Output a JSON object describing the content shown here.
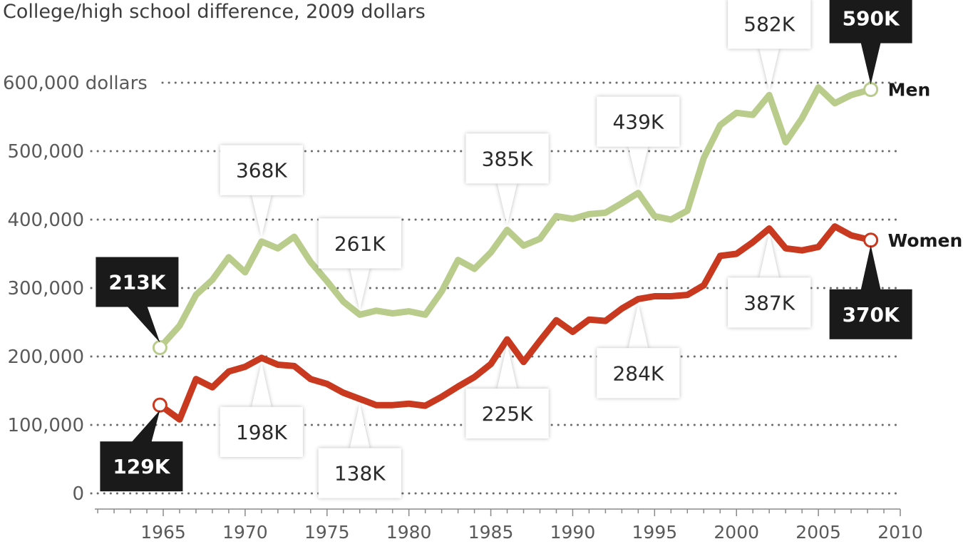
{
  "chart_data": {
    "type": "line",
    "title": "College/high school difference, 2009 dollars",
    "y_unit_label": "dollars",
    "ylim": [
      0,
      600000
    ],
    "xlim": [
      1961,
      2010
    ],
    "y_ticks": [
      {
        "value": 0,
        "label": "0"
      },
      {
        "value": 100000,
        "label": "100,000"
      },
      {
        "value": 200000,
        "label": "200,000"
      },
      {
        "value": 300000,
        "label": "300,000"
      },
      {
        "value": 400000,
        "label": "400,000"
      },
      {
        "value": 500000,
        "label": "500,000"
      },
      {
        "value": 600000,
        "label": "600,000"
      }
    ],
    "x_ticks": [
      {
        "value": 1965,
        "label": "1965"
      },
      {
        "value": 1970,
        "label": "1970"
      },
      {
        "value": 1975,
        "label": "1975"
      },
      {
        "value": 1980,
        "label": "1980"
      },
      {
        "value": 1985,
        "label": "1985"
      },
      {
        "value": 1990,
        "label": "1990"
      },
      {
        "value": 1995,
        "label": "1995"
      },
      {
        "value": 2000,
        "label": "2000"
      },
      {
        "value": 2005,
        "label": "2005"
      },
      {
        "value": 2010,
        "label": "2010"
      }
    ],
    "grid": true,
    "series": [
      {
        "name": "Men",
        "color": "#b9cc8c",
        "x": [
          1964.8,
          1966,
          1967,
          1968,
          1969,
          1970,
          1971,
          1972,
          1973,
          1974,
          1975,
          1976,
          1977,
          1978,
          1979,
          1980,
          1981,
          1982,
          1983,
          1984,
          1985,
          1986,
          1987,
          1988,
          1989,
          1990,
          1991,
          1992,
          1993,
          1994,
          1995,
          1996,
          1997,
          1998,
          1999,
          2000,
          2001,
          2002,
          2003,
          2004,
          2005,
          2006,
          2007,
          2008.2
        ],
        "values": [
          213000,
          245000,
          290000,
          312000,
          345000,
          323000,
          368000,
          358000,
          375000,
          338000,
          310000,
          280000,
          261000,
          267000,
          263000,
          266000,
          261000,
          295000,
          341000,
          328000,
          352000,
          385000,
          362000,
          372000,
          405000,
          401000,
          408000,
          410000,
          424000,
          439000,
          405000,
          400000,
          413000,
          490000,
          538000,
          556000,
          553000,
          582000,
          513000,
          548000,
          593000,
          570000,
          582000,
          590000
        ]
      },
      {
        "name": "Women",
        "color": "#c8391f",
        "x": [
          1964.8,
          1966,
          1967,
          1968,
          1969,
          1970,
          1971,
          1972,
          1973,
          1974,
          1975,
          1976,
          1977,
          1978,
          1979,
          1980,
          1981,
          1982,
          1983,
          1984,
          1985,
          1986,
          1987,
          1988,
          1989,
          1990,
          1991,
          1992,
          1993,
          1994,
          1995,
          1996,
          1997,
          1998,
          1999,
          2000,
          2001,
          2002,
          2003,
          2004,
          2005,
          2006,
          2007,
          2008.2
        ],
        "values": [
          129000,
          108000,
          167000,
          155000,
          178000,
          185000,
          198000,
          188000,
          186000,
          167000,
          160000,
          147000,
          138000,
          129000,
          129000,
          131000,
          128000,
          141000,
          156000,
          170000,
          189000,
          225000,
          192000,
          223000,
          253000,
          236000,
          254000,
          252000,
          270000,
          284000,
          288000,
          288000,
          290000,
          304000,
          347000,
          350000,
          367000,
          387000,
          358000,
          355000,
          360000,
          390000,
          377000,
          370000
        ]
      }
    ],
    "annotations": [
      {
        "series": "Men",
        "x": 1964.8,
        "value": 213000,
        "label": "213K",
        "style": "dark",
        "position": "above-left"
      },
      {
        "series": "Men",
        "x": 1971,
        "value": 368000,
        "label": "368K",
        "style": "light",
        "position": "above"
      },
      {
        "series": "Men",
        "x": 1977,
        "value": 261000,
        "label": "261K",
        "style": "light",
        "position": "above"
      },
      {
        "series": "Men",
        "x": 1986,
        "value": 385000,
        "label": "385K",
        "style": "light",
        "position": "above"
      },
      {
        "series": "Men",
        "x": 1994,
        "value": 439000,
        "label": "439K",
        "style": "light",
        "position": "above"
      },
      {
        "series": "Men",
        "x": 2002,
        "value": 582000,
        "label": "582K",
        "style": "light",
        "position": "above"
      },
      {
        "series": "Men",
        "x": 2008.2,
        "value": 590000,
        "label": "590K",
        "style": "dark",
        "position": "above"
      },
      {
        "series": "Women",
        "x": 1964.8,
        "value": 129000,
        "label": "129K",
        "style": "dark",
        "position": "below-left"
      },
      {
        "series": "Women",
        "x": 1971,
        "value": 198000,
        "label": "198K",
        "style": "light",
        "position": "below"
      },
      {
        "series": "Women",
        "x": 1977,
        "value": 138000,
        "label": "138K",
        "style": "light",
        "position": "below"
      },
      {
        "series": "Women",
        "x": 1986,
        "value": 225000,
        "label": "225K",
        "style": "light",
        "position": "below"
      },
      {
        "series": "Women",
        "x": 1994,
        "value": 284000,
        "label": "284K",
        "style": "light",
        "position": "below"
      },
      {
        "series": "Women",
        "x": 2002,
        "value": 387000,
        "label": "387K",
        "style": "light",
        "position": "below"
      },
      {
        "series": "Women",
        "x": 2008.2,
        "value": 370000,
        "label": "370K",
        "style": "dark",
        "position": "below"
      }
    ]
  }
}
